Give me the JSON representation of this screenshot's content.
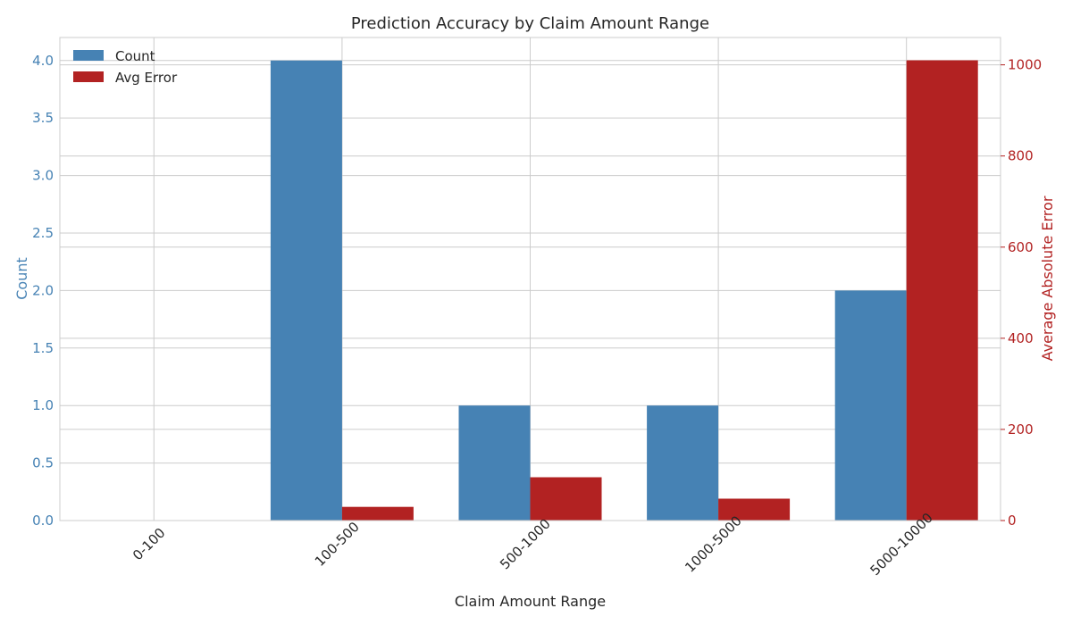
{
  "chart_data": {
    "type": "bar",
    "title": "Prediction Accuracy by Claim Amount Range",
    "xlabel": "Claim Amount Range",
    "categories": [
      "0-100",
      "100-500",
      "500-1000",
      "1000-5000",
      "5000-10000"
    ],
    "series": [
      {
        "name": "Count",
        "axis": "left",
        "color": "#4682b4",
        "values": [
          0,
          4,
          1,
          1,
          2
        ]
      },
      {
        "name": "Avg Error",
        "axis": "right",
        "color": "#b22222",
        "values": [
          0,
          30,
          95,
          48,
          1010
        ]
      }
    ],
    "y_left": {
      "label": "Count",
      "color": "#4682b4",
      "range": [
        0,
        4.2
      ],
      "ticks": [
        "0.0",
        "0.5",
        "1.0",
        "1.5",
        "2.0",
        "2.5",
        "3.0",
        "3.5",
        "4.0"
      ]
    },
    "y_right": {
      "label": "Average Absolute Error",
      "color": "#b22222",
      "range": [
        0,
        1060
      ],
      "ticks": [
        "0",
        "200",
        "400",
        "600",
        "800",
        "1000"
      ]
    },
    "grid": true,
    "legend": "upper-left"
  }
}
